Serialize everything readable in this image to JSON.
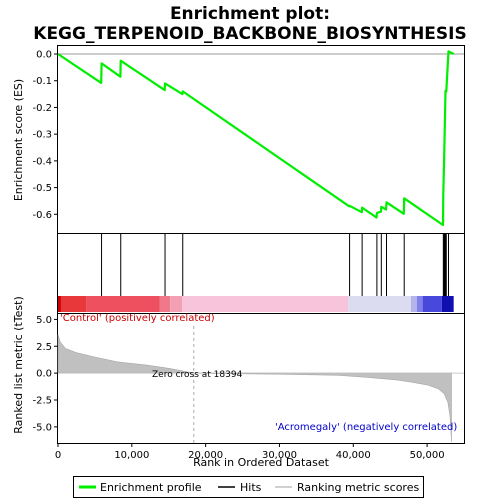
{
  "chart_data": {
    "type": "line",
    "title_line1": "Enrichment plot:",
    "title_line2": "KEGG_TERPENOID_BACKBONE_BIOSYNTHESIS",
    "xlabel": "Rank in Ordered Dataset",
    "ylabel_top": "Enrichment score (ES)",
    "ylabel_bottom": "Ranked list metric (tTest)",
    "xlim": [
      0,
      55000
    ],
    "es_ylim": [
      -0.67,
      0.03
    ],
    "metric_ylim": [
      -6.5,
      5.5
    ],
    "x_ticks": [
      0,
      10000,
      20000,
      30000,
      40000,
      50000
    ],
    "x_tick_labels": [
      "0",
      "10,000",
      "20,000",
      "30,000",
      "40,000",
      "50,000"
    ],
    "es_ticks": [
      0.0,
      -0.1,
      -0.2,
      -0.3,
      -0.4,
      -0.5,
      -0.6
    ],
    "es_tick_labels": [
      "0.0",
      "-0.1",
      "-0.2",
      "-0.3",
      "-0.4",
      "-0.5",
      "-0.6"
    ],
    "metric_ticks": [
      5.0,
      2.5,
      0.0,
      -2.5,
      -5.0
    ],
    "metric_tick_labels": [
      "5.0",
      "2.5",
      "0.0",
      "-2.5",
      "-5.0"
    ],
    "annotation_positive": "'Control' (positively correlated)",
    "annotation_negative": "'Acromegaly' (negatively correlated)",
    "annotation_zero": "Zero cross at 18394",
    "zero_cross": 18394,
    "total_ranks": 53000,
    "hits": [
      5900,
      8500,
      14500,
      16900,
      39500,
      41200,
      43200,
      43800,
      44500,
      46900,
      52200,
      52300,
      52400,
      52500,
      52600,
      52900
    ],
    "es_profile": {
      "x": [
        0,
        5850,
        5900,
        8450,
        8500,
        14450,
        14500,
        16850,
        16900,
        39450,
        39500,
        41150,
        41200,
        43150,
        43200,
        43750,
        43800,
        44450,
        44500,
        46850,
        46900,
        52150,
        52200,
        52300,
        52400,
        52500,
        52600,
        52900,
        53600
      ],
      "y": [
        0.0,
        -0.108,
        -0.035,
        -0.085,
        -0.025,
        -0.135,
        -0.11,
        -0.15,
        -0.14,
        -0.57,
        -0.568,
        -0.592,
        -0.575,
        -0.612,
        -0.595,
        -0.59,
        -0.572,
        -0.582,
        -0.555,
        -0.598,
        -0.54,
        -0.64,
        -0.52,
        -0.4,
        -0.27,
        -0.138,
        -0.14,
        0.01,
        0.0
      ]
    },
    "metric_curve": {
      "x": [
        0,
        300,
        1000,
        2500,
        5000,
        8000,
        12000,
        15000,
        18394,
        22000,
        30000,
        38000,
        42000,
        46000,
        48000,
        50000,
        51500,
        52300,
        52800,
        53100,
        53300
      ],
      "y": [
        3.6,
        2.9,
        2.3,
        1.9,
        1.5,
        1.05,
        0.75,
        0.45,
        0.0,
        -0.05,
        -0.1,
        -0.2,
        -0.4,
        -0.65,
        -0.85,
        -1.1,
        -1.45,
        -1.9,
        -2.7,
        -4.0,
        -6.4
      ]
    },
    "color_bar_segments": [
      {
        "from": 0,
        "to": 400,
        "color": "#cc0000"
      },
      {
        "from": 400,
        "to": 3800,
        "color": "#e8383a"
      },
      {
        "from": 3800,
        "to": 13800,
        "color": "#ee5060"
      },
      {
        "from": 13800,
        "to": 15200,
        "color": "#f07888"
      },
      {
        "from": 15200,
        "to": 16800,
        "color": "#f4a0b4"
      },
      {
        "from": 16800,
        "to": 39300,
        "color": "#f8c4dc"
      },
      {
        "from": 39300,
        "to": 47800,
        "color": "#dcdcf0"
      },
      {
        "from": 47800,
        "to": 48600,
        "color": "#b4b4ea"
      },
      {
        "from": 48600,
        "to": 49400,
        "color": "#8080e8"
      },
      {
        "from": 49400,
        "to": 52000,
        "color": "#4848dc"
      },
      {
        "from": 52000,
        "to": 53600,
        "color": "#1010b0"
      }
    ],
    "legend": [
      {
        "label": "Enrichment profile",
        "color": "#00ee00"
      },
      {
        "label": "Hits",
        "color": "#000000"
      },
      {
        "label": "Ranking metric scores",
        "color": "#c0c0c0"
      }
    ],
    "colors": {
      "es_line": "#00ee00",
      "hit_line": "#000000",
      "metric_fill": "#c0c0c0",
      "zero_line": "#999999",
      "positive_text": "#cc0000",
      "negative_text": "#0000cc"
    }
  }
}
